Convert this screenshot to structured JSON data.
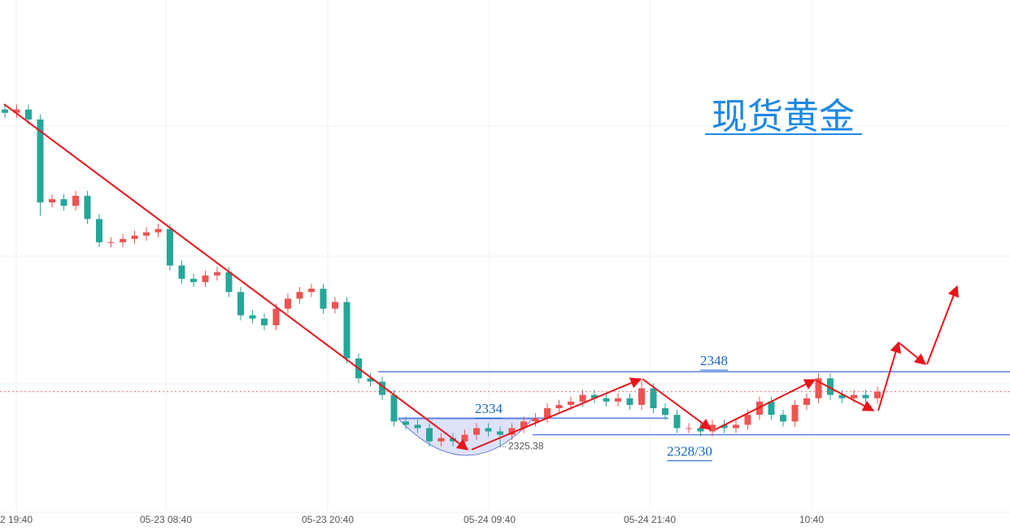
{
  "chart_data": {
    "type": "candlestick",
    "title": "现货黄金",
    "x_labels": [
      "2 19:40",
      "05-23 08:40",
      "05-23 20:40",
      "05-24 09:40",
      "05-24 21:40",
      "10:40"
    ],
    "ylim": [
      2300,
      2460
    ],
    "up_color": "#ef5350",
    "down_color": "#26a69a",
    "candles": [
      [
        2427,
        2428.5,
        2424.5,
        2426
      ],
      [
        2426,
        2428.5,
        2424.5,
        2427
      ],
      [
        2427,
        2428.5,
        2422.5,
        2424
      ],
      [
        2424,
        2425.5,
        2395,
        2399
      ],
      [
        2399,
        2401.5,
        2397.5,
        2400
      ],
      [
        2400,
        2401.5,
        2396.5,
        2398
      ],
      [
        2398,
        2402.5,
        2396.5,
        2401
      ],
      [
        2401,
        2402.5,
        2392.5,
        2394
      ],
      [
        2394,
        2395.5,
        2385.5,
        2387
      ],
      [
        2387,
        2388.5,
        2385.5,
        2387
      ],
      [
        2387,
        2389.5,
        2385.5,
        2388
      ],
      [
        2388,
        2390.5,
        2386.5,
        2389
      ],
      [
        2389,
        2391.5,
        2387.5,
        2390
      ],
      [
        2390,
        2392.5,
        2388.5,
        2391
      ],
      [
        2391,
        2392.5,
        2378.5,
        2380
      ],
      [
        2380,
        2381.5,
        2374.5,
        2376
      ],
      [
        2376,
        2377.5,
        2373.5,
        2375
      ],
      [
        2375,
        2378.5,
        2373.5,
        2377
      ],
      [
        2377,
        2379.5,
        2375.5,
        2378
      ],
      [
        2378,
        2379.5,
        2370.5,
        2372
      ],
      [
        2372,
        2373.5,
        2363.5,
        2365
      ],
      [
        2365,
        2366.5,
        2362.5,
        2364
      ],
      [
        2364,
        2365.5,
        2360.5,
        2362
      ],
      [
        2362,
        2368.5,
        2360.5,
        2367
      ],
      [
        2367,
        2371.5,
        2365.5,
        2370
      ],
      [
        2370,
        2373.5,
        2368.5,
        2372
      ],
      [
        2372,
        2374.5,
        2370.5,
        2373
      ],
      [
        2373,
        2374.5,
        2365.5,
        2367
      ],
      [
        2367,
        2370.5,
        2365.5,
        2369
      ],
      [
        2369,
        2370.5,
        2350.5,
        2352
      ],
      [
        2352,
        2353.5,
        2344.5,
        2346
      ],
      [
        2346,
        2347.5,
        2343.5,
        2345
      ],
      [
        2345,
        2346.5,
        2339.5,
        2341
      ],
      [
        2341,
        2342.5,
        2331.5,
        2333
      ],
      [
        2333,
        2334.5,
        2330.5,
        2332
      ],
      [
        2332,
        2333.5,
        2329.5,
        2331
      ],
      [
        2331,
        2332.5,
        2325.5,
        2327
      ],
      [
        2327,
        2329.5,
        2325.5,
        2328
      ],
      [
        2328,
        2329.5,
        2325.5,
        2327
      ],
      [
        2327,
        2330.5,
        2325.5,
        2329
      ],
      [
        2329,
        2332.5,
        2327.5,
        2331
      ],
      [
        2331,
        2332.5,
        2328.5,
        2330
      ],
      [
        2330,
        2331.5,
        2325.38,
        2329
      ],
      [
        2329,
        2332.5,
        2327.5,
        2331
      ],
      [
        2331,
        2334.5,
        2329.5,
        2333
      ],
      [
        2333,
        2335.5,
        2331.5,
        2334
      ],
      [
        2334,
        2338.5,
        2332.5,
        2337
      ],
      [
        2337,
        2339.5,
        2335.5,
        2338
      ],
      [
        2338,
        2340.5,
        2336.5,
        2339
      ],
      [
        2339,
        2342.5,
        2337.5,
        2341
      ],
      [
        2341,
        2342.5,
        2338.5,
        2340
      ],
      [
        2340,
        2341.5,
        2337.5,
        2339
      ],
      [
        2339,
        2341.5,
        2337.5,
        2340
      ],
      [
        2340,
        2341.5,
        2336.5,
        2338
      ],
      [
        2338,
        2345.5,
        2336.5,
        2343
      ],
      [
        2343,
        2344.5,
        2335.5,
        2337
      ],
      [
        2337,
        2338.5,
        2333.5,
        2335
      ],
      [
        2335,
        2336.5,
        2329.5,
        2331
      ],
      [
        2331,
        2332.5,
        2329.5,
        2331
      ],
      [
        2331,
        2332.5,
        2328.5,
        2330
      ],
      [
        2330,
        2333.5,
        2328.5,
        2332
      ],
      [
        2332,
        2333.5,
        2329.5,
        2331
      ],
      [
        2331,
        2333.5,
        2329.5,
        2332
      ],
      [
        2332,
        2336.5,
        2330.5,
        2335
      ],
      [
        2335,
        2340.5,
        2333.5,
        2339
      ],
      [
        2339,
        2340.5,
        2333.5,
        2335
      ],
      [
        2335,
        2336.5,
        2331.5,
        2333
      ],
      [
        2333,
        2339.5,
        2331.5,
        2338
      ],
      [
        2338,
        2341.5,
        2336.5,
        2340
      ],
      [
        2340,
        2347.5,
        2338.5,
        2346
      ],
      [
        2346,
        2347.5,
        2339.5,
        2341
      ],
      [
        2341,
        2342.5,
        2338.5,
        2340
      ],
      [
        2340,
        2342.5,
        2338.5,
        2341
      ],
      [
        2341,
        2342.5,
        2338.5,
        2340
      ],
      [
        2340,
        2343.5,
        2338.5,
        2342
      ]
    ],
    "levels": [
      {
        "value": 2348,
        "label": "2348"
      },
      {
        "value": 2334,
        "label": "2334"
      },
      {
        "value": 2329,
        "label": "2328/30"
      }
    ],
    "low_marker": 2325.38
  }
}
